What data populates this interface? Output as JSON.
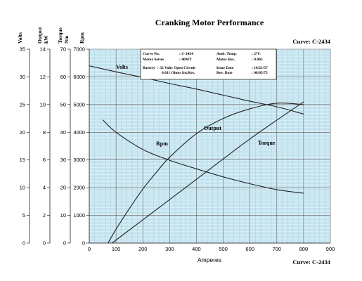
{
  "chart_data": {
    "type": "line",
    "title": "Cranking Motor Performance",
    "curve_label": "Curve: C-2434",
    "xlabel": "Amperes",
    "xlim": [
      0,
      900
    ],
    "x_ticks": [
      0,
      100,
      200,
      300,
      400,
      500,
      600,
      700,
      800,
      900
    ],
    "grid": true,
    "axes": [
      {
        "name": "Volts",
        "unit": "",
        "lim": [
          0,
          35
        ],
        "ticks": [
          0,
          5,
          10,
          15,
          20,
          25,
          30,
          35
        ]
      },
      {
        "name": "Output",
        "unit": "kW",
        "lim": [
          0,
          14
        ],
        "ticks": [
          0,
          2,
          4,
          6,
          8,
          10,
          12,
          14
        ]
      },
      {
        "name": "Torque",
        "unit": "Nm",
        "lim": [
          0,
          70
        ],
        "ticks": [
          0,
          10,
          20,
          30,
          40,
          50,
          60,
          70
        ]
      },
      {
        "name": "Rpm",
        "unit": "",
        "lim": [
          0,
          7000
        ],
        "ticks": [
          0,
          1000,
          2000,
          3000,
          4000,
          5000,
          6000,
          7000
        ]
      }
    ],
    "series": [
      {
        "name": "Volts",
        "axis": 0,
        "color": "#222222",
        "x": [
          0,
          100,
          200,
          300,
          400,
          500,
          600,
          700,
          800
        ],
        "y": [
          32.0,
          30.9,
          29.9,
          28.8,
          27.8,
          26.7,
          25.6,
          24.6,
          23.3
        ]
      },
      {
        "name": "Output",
        "axis": 1,
        "color": "#222222",
        "x": [
          70,
          100,
          150,
          200,
          250,
          300,
          400,
          500,
          600,
          700,
          800
        ],
        "y": [
          0.0,
          1.0,
          2.5,
          3.9,
          5.1,
          6.2,
          7.9,
          9.0,
          9.7,
          10.1,
          10.0
        ]
      },
      {
        "name": "Torque",
        "axis": 2,
        "color": "#222222",
        "x": [
          85,
          200,
          400,
          600,
          800
        ],
        "y": [
          0.0,
          8.4,
          23.0,
          37.6,
          51.0
        ]
      },
      {
        "name": "Rpm",
        "axis": 3,
        "color": "#222222",
        "x": [
          50,
          100,
          200,
          300,
          400,
          500,
          600,
          700,
          800
        ],
        "y": [
          4450,
          4000,
          3380,
          2990,
          2680,
          2390,
          2140,
          1930,
          1800
        ]
      }
    ],
    "info": [
      {
        "label": "Curve No.",
        "value": ": C-2434"
      },
      {
        "label": "Amb. Temp.",
        "value": ": 27C"
      },
      {
        "label": "Motor Series",
        "value": ": 40MT"
      },
      {
        "label": "Motor Res.",
        "value": ": 0.005"
      },
      {
        "label": "Battery",
        "value": ": 32 Volts Open Circuit"
      },
      {
        "label": "",
        "value": "0.011 Ohms Int.Res."
      },
      {
        "label": "Issue Date",
        "value": ": 10/21/57"
      },
      {
        "label": "Rev. Date",
        "value": ": 08/05/75"
      }
    ]
  }
}
